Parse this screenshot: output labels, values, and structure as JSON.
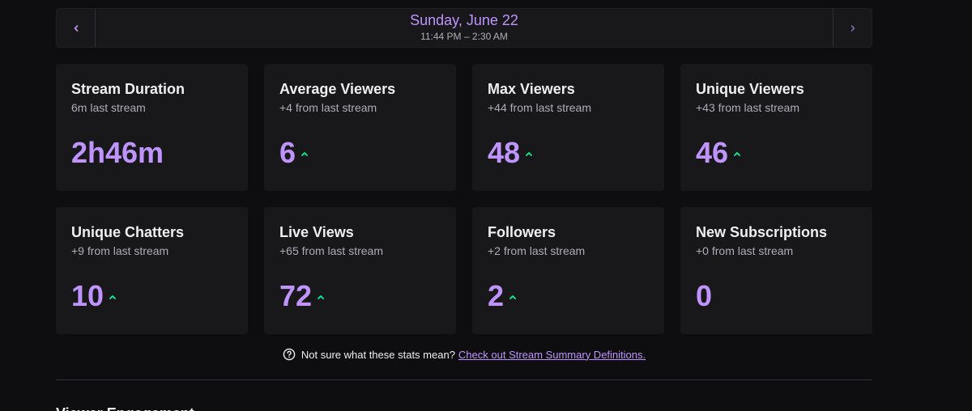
{
  "date_nav": {
    "title": "Sunday, June 22",
    "time_range": "11:44 PM – 2:30 AM",
    "prev_icon": "chevron-left-icon",
    "next_icon": "chevron-right-icon"
  },
  "stats": [
    {
      "title": "Stream Duration",
      "subtitle": "6m last stream",
      "value": "2h46m",
      "trend": "none"
    },
    {
      "title": "Average Viewers",
      "subtitle": "+4 from last stream",
      "value": "6",
      "trend": "up"
    },
    {
      "title": "Max Viewers",
      "subtitle": "+44 from last stream",
      "value": "48",
      "trend": "up"
    },
    {
      "title": "Unique Viewers",
      "subtitle": "+43 from last stream",
      "value": "46",
      "trend": "up"
    },
    {
      "title": "Unique Chatters",
      "subtitle": "+9 from last stream",
      "value": "10",
      "trend": "up"
    },
    {
      "title": "Live Views",
      "subtitle": "+65 from last stream",
      "value": "72",
      "trend": "up"
    },
    {
      "title": "Followers",
      "subtitle": "+2 from last stream",
      "value": "2",
      "trend": "up"
    },
    {
      "title": "New Subscriptions",
      "subtitle": "+0 from last stream",
      "value": "0",
      "trend": "none"
    }
  ],
  "help": {
    "text": "Not sure what these stats mean?",
    "link": "Check out Stream Summary Definitions.",
    "icon": "question-circle-icon"
  },
  "next_section_title": "Viewer Engagement",
  "colors": {
    "accent": "#bf94ff",
    "trend_up": "#00f593",
    "card_bg": "#18181b",
    "page_bg": "#0e0e10"
  }
}
